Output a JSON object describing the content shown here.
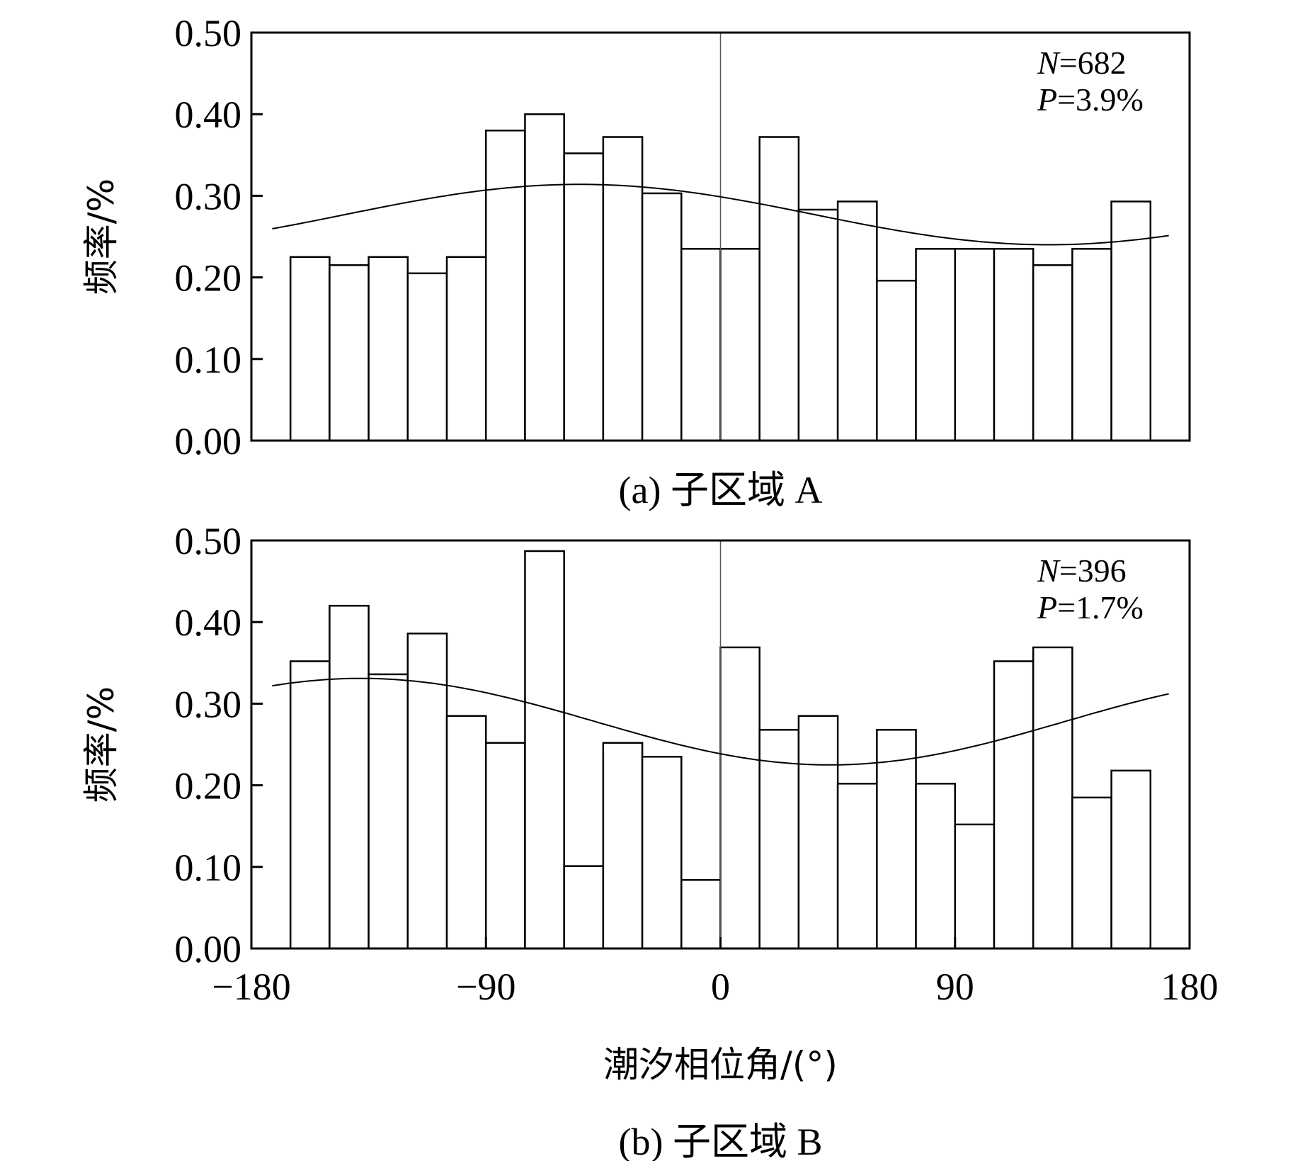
{
  "chart_data": [
    {
      "type": "bar",
      "panel_id": "a",
      "caption": "(a) 子区域 A",
      "ylabel": "频率/%",
      "xlabel": "",
      "xlim": [
        -180,
        180
      ],
      "ylim": [
        0,
        0.5
      ],
      "yticks": [
        "0.00",
        "0.10",
        "0.20",
        "0.30",
        "0.40",
        "0.50"
      ],
      "xticks": [],
      "annotation": {
        "n_label": "N",
        "n_value": "=682",
        "p_label": "P",
        "p_value": "=3.9%"
      },
      "bin_edges": [
        -165,
        -150,
        -135,
        -120,
        -105,
        -90,
        -75,
        -60,
        -45,
        -30,
        -15,
        0,
        15,
        30,
        45,
        60,
        75,
        90,
        105,
        120,
        135,
        150,
        165
      ],
      "values": [
        0.225,
        0.215,
        0.225,
        0.205,
        0.225,
        0.38,
        0.4,
        0.352,
        0.372,
        0.303,
        0.235,
        0.235,
        0.372,
        0.283,
        0.293,
        0.196,
        0.235,
        0.235,
        0.235,
        0.215,
        0.235,
        0.293
      ],
      "fit_curve": {
        "mean": 0.277,
        "amplitude": 0.037,
        "peak_phase": -54
      }
    },
    {
      "type": "bar",
      "panel_id": "b",
      "caption": "(b) 子区域 B",
      "ylabel": "频率/%",
      "xlabel": "潮汐相位角/(°)",
      "xlim": [
        -180,
        180
      ],
      "ylim": [
        0,
        0.5
      ],
      "yticks": [
        "0.00",
        "0.10",
        "0.20",
        "0.30",
        "0.40",
        "0.50"
      ],
      "xticks": [
        "−180",
        "−90",
        "0",
        "90",
        "180"
      ],
      "annotation": {
        "n_label": "N",
        "n_value": "=396",
        "p_label": "P",
        "p_value": "=1.7%"
      },
      "bin_edges": [
        -165,
        -150,
        -135,
        -120,
        -105,
        -90,
        -75,
        -60,
        -45,
        -30,
        -15,
        0,
        15,
        30,
        45,
        60,
        75,
        90,
        105,
        120,
        135,
        150,
        165
      ],
      "values": [
        0.352,
        0.42,
        0.336,
        0.386,
        0.285,
        0.252,
        0.487,
        0.101,
        0.252,
        0.235,
        0.084,
        0.369,
        0.268,
        0.285,
        0.202,
        0.268,
        0.202,
        0.152,
        0.352,
        0.369,
        0.185,
        0.218
      ],
      "fit_curve": {
        "mean": 0.278,
        "amplitude": 0.053,
        "peak_phase": -138
      }
    }
  ]
}
